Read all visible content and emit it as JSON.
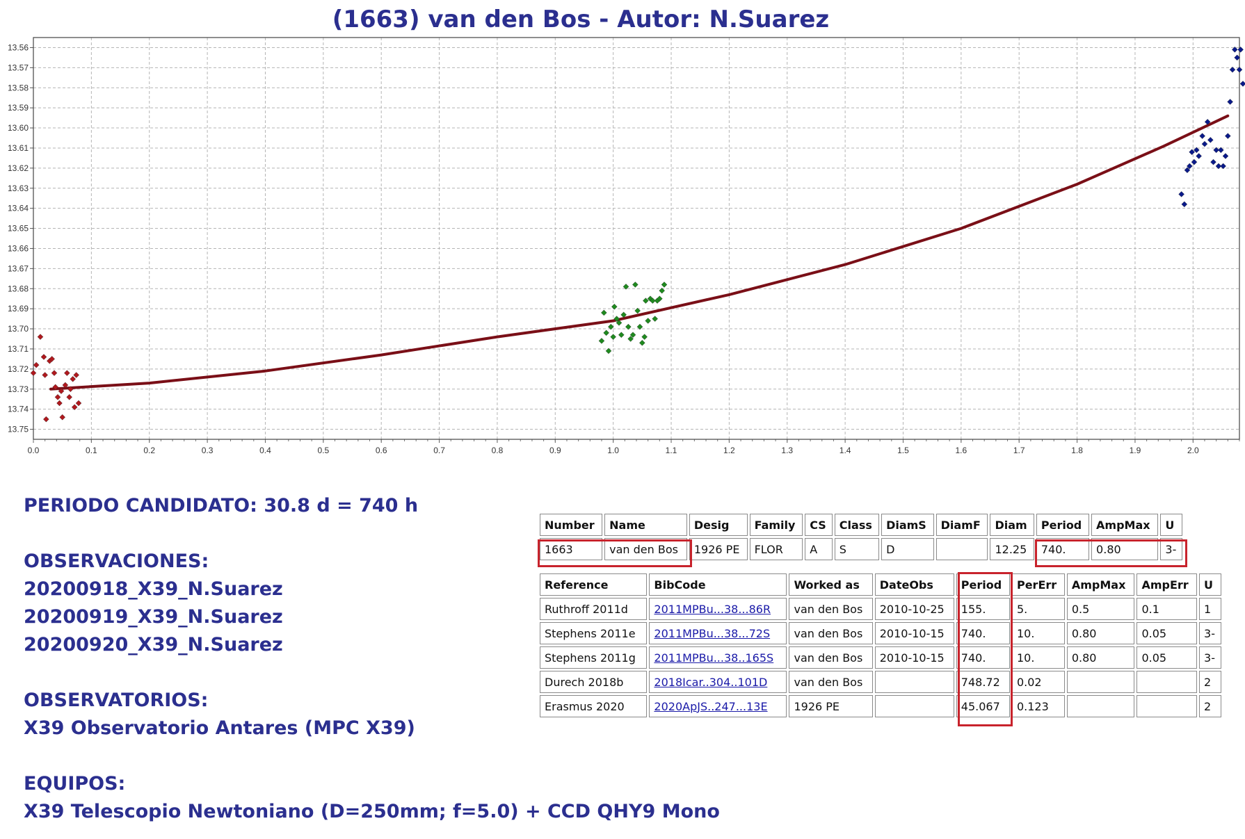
{
  "title": "(1663) van den Bos - Autor: N.Suarez",
  "chart_data": {
    "type": "scatter",
    "title": "(1663) van den Bos - Autor: N.Suarez",
    "xlabel": "",
    "ylabel": "",
    "xlim": [
      0.0,
      2.08
    ],
    "ylim": [
      13.555,
      13.755
    ],
    "y_inverted": true,
    "grid": true,
    "x_ticks": [
      "0.0",
      "0.1",
      "0.2",
      "0.3",
      "0.4",
      "0.5",
      "0.6",
      "0.7",
      "0.8",
      "0.9",
      "1.0",
      "1.1",
      "1.2",
      "1.3",
      "1.4",
      "1.5",
      "1.6",
      "1.7",
      "1.8",
      "1.9",
      "2.0"
    ],
    "y_ticks": [
      "13.56",
      "13.57",
      "13.58",
      "13.59",
      "13.60",
      "13.61",
      "13.62",
      "13.63",
      "13.64",
      "13.65",
      "13.66",
      "13.67",
      "13.68",
      "13.69",
      "13.70",
      "13.71",
      "13.72",
      "13.73",
      "13.74",
      "13.75"
    ],
    "series": [
      {
        "color": "#b0191e",
        "points": [
          [
            0.0,
            13.722
          ],
          [
            0.005,
            13.718
          ],
          [
            0.012,
            13.704
          ],
          [
            0.018,
            13.714
          ],
          [
            0.02,
            13.723
          ],
          [
            0.022,
            13.745
          ],
          [
            0.028,
            13.716
          ],
          [
            0.032,
            13.715
          ],
          [
            0.038,
            13.729
          ],
          [
            0.042,
            13.734
          ],
          [
            0.045,
            13.737
          ],
          [
            0.05,
            13.744
          ],
          [
            0.055,
            13.728
          ],
          [
            0.058,
            13.722
          ],
          [
            0.062,
            13.734
          ],
          [
            0.064,
            13.73
          ],
          [
            0.068,
            13.725
          ],
          [
            0.071,
            13.739
          ],
          [
            0.074,
            13.723
          ],
          [
            0.078,
            13.737
          ],
          [
            0.036,
            13.722
          ],
          [
            0.048,
            13.731
          ]
        ]
      },
      {
        "color": "#1f8a1f",
        "points": [
          [
            0.98,
            13.706
          ],
          [
            0.984,
            13.692
          ],
          [
            0.988,
            13.702
          ],
          [
            0.992,
            13.711
          ],
          [
            0.996,
            13.699
          ],
          [
            1.0,
            13.704
          ],
          [
            1.002,
            13.689
          ],
          [
            1.006,
            13.695
          ],
          [
            1.01,
            13.697
          ],
          [
            1.014,
            13.703
          ],
          [
            1.018,
            13.693
          ],
          [
            1.022,
            13.679
          ],
          [
            1.026,
            13.699
          ],
          [
            1.03,
            13.705
          ],
          [
            1.034,
            13.703
          ],
          [
            1.038,
            13.678
          ],
          [
            1.042,
            13.691
          ],
          [
            1.046,
            13.699
          ],
          [
            1.05,
            13.707
          ],
          [
            1.054,
            13.704
          ],
          [
            1.056,
            13.686
          ],
          [
            1.06,
            13.696
          ],
          [
            1.064,
            13.685
          ],
          [
            1.068,
            13.686
          ],
          [
            1.072,
            13.695
          ],
          [
            1.076,
            13.686
          ],
          [
            1.08,
            13.685
          ],
          [
            1.084,
            13.681
          ],
          [
            1.088,
            13.678
          ]
        ]
      },
      {
        "color": "#0a1a8a",
        "points": [
          [
            1.98,
            13.633
          ],
          [
            1.985,
            13.638
          ],
          [
            1.99,
            13.621
          ],
          [
            1.994,
            13.619
          ],
          [
            1.998,
            13.612
          ],
          [
            2.002,
            13.617
          ],
          [
            2.006,
            13.611
          ],
          [
            2.01,
            13.614
          ],
          [
            2.016,
            13.604
          ],
          [
            2.02,
            13.608
          ],
          [
            2.025,
            13.597
          ],
          [
            2.03,
            13.606
          ],
          [
            2.035,
            13.617
          ],
          [
            2.04,
            13.611
          ],
          [
            2.044,
            13.619
          ],
          [
            2.048,
            13.611
          ],
          [
            2.052,
            13.619
          ],
          [
            2.056,
            13.614
          ],
          [
            2.06,
            13.604
          ],
          [
            2.064,
            13.587
          ],
          [
            2.068,
            13.571
          ],
          [
            2.072,
            13.561
          ],
          [
            2.076,
            13.565
          ],
          [
            2.08,
            13.571
          ],
          [
            2.082,
            13.561
          ],
          [
            2.086,
            13.578
          ]
        ]
      }
    ],
    "fit_curve": {
      "color": "#7a0f17",
      "points": [
        [
          0.03,
          13.73
        ],
        [
          0.2,
          13.727
        ],
        [
          0.4,
          13.721
        ],
        [
          0.6,
          13.713
        ],
        [
          0.8,
          13.704
        ],
        [
          1.0,
          13.696
        ],
        [
          1.2,
          13.683
        ],
        [
          1.4,
          13.668
        ],
        [
          1.6,
          13.65
        ],
        [
          1.8,
          13.628
        ],
        [
          1.95,
          13.609
        ],
        [
          2.06,
          13.594
        ]
      ]
    }
  },
  "info": {
    "periodo": "PERIODO CANDIDATO: 30.8 d = 740 h",
    "obs_title": "OBSERVACIONES:",
    "obs": [
      "20200918_X39_N.Suarez",
      "20200919_X39_N.Suarez",
      "20200920_X39_N.Suarez"
    ],
    "observatorios_title": "OBSERVATORIOS:",
    "observatorio": "X39 Observatorio Antares (MPC X39)",
    "equipos_title": "EQUIPOS:",
    "equipo": "X39 Telescopio Newtoniano (D=250mm; f=5.0) + CCD QHY9 Mono"
  },
  "table1": {
    "headers": [
      "Number",
      "Name",
      "Desig",
      "Family",
      "CS",
      "Class",
      "DiamS",
      "DiamF",
      "Diam",
      "Period",
      "AmpMax",
      "U"
    ],
    "row": [
      "1663",
      "van den Bos",
      "1926 PE",
      "FLOR",
      "A",
      "S",
      "D",
      "",
      "12.25",
      "740.",
      "0.80",
      "3-"
    ]
  },
  "table2": {
    "headers": [
      "Reference",
      "BibCode",
      "Worked as",
      "DateObs",
      "Period",
      "PerErr",
      "AmpMax",
      "AmpErr",
      "U"
    ],
    "rows": [
      [
        "Ruthroff 2011d",
        "2011MPBu...38...86R",
        "van den Bos",
        "2010-10-25",
        "155.",
        "5.",
        "0.5",
        "0.1",
        "1"
      ],
      [
        "Stephens 2011e",
        "2011MPBu...38...72S",
        "van den Bos",
        "2010-10-15",
        "740.",
        "10.",
        "0.80",
        "0.05",
        "3-"
      ],
      [
        "Stephens 2011g",
        "2011MPBu...38..165S",
        "van den Bos",
        "2010-10-15",
        "740.",
        "10.",
        "0.80",
        "0.05",
        "3-"
      ],
      [
        "Durech 2018b",
        "2018Icar..304..101D",
        "van den Bos",
        "",
        "748.72",
        "0.02",
        "",
        "",
        "2"
      ],
      [
        "Erasmus 2020",
        "2020ApJS..247...13E",
        "1926 PE",
        "",
        "45.067",
        "0.123",
        "",
        "",
        "2"
      ]
    ]
  }
}
